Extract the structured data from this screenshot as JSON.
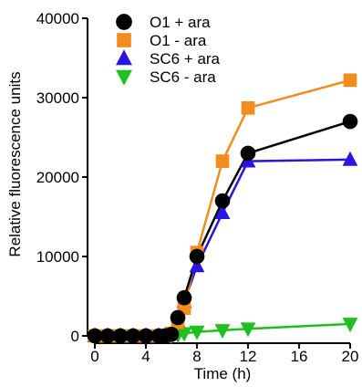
{
  "chart_data": {
    "type": "line",
    "title": "",
    "xlabel": "Time (h)",
    "ylabel": "Relative fluorescence units",
    "xlim": [
      0,
      20
    ],
    "ylim": [
      0,
      40000
    ],
    "x_ticks": [
      0,
      4,
      8,
      12,
      16,
      20
    ],
    "y_ticks": [
      0,
      10000,
      20000,
      30000,
      40000
    ],
    "x_tick_labels": [
      "0",
      "4",
      "8",
      "12",
      "16",
      "20"
    ],
    "y_tick_labels": [
      "0",
      "10000",
      "20000",
      "30000",
      "40000"
    ],
    "legend_position": "top-left",
    "grid": false,
    "series": [
      {
        "name": "O1 + ara",
        "color": "#000000",
        "marker": "circle",
        "x": [
          0,
          1,
          2,
          3,
          4,
          5,
          5.5,
          6,
          6.5,
          7,
          8,
          10,
          12,
          20
        ],
        "y": [
          0,
          0,
          0,
          0,
          0,
          0,
          0,
          200,
          2300,
          4800,
          10000,
          17000,
          23000,
          27000
        ]
      },
      {
        "name": "O1 - ara",
        "color": "#f28c1e",
        "marker": "square",
        "x": [
          0,
          1,
          2,
          3,
          4,
          5,
          5.5,
          6,
          6.5,
          7,
          8,
          10,
          12,
          20
        ],
        "y": [
          0,
          0,
          0,
          0,
          0,
          0,
          0,
          300,
          1700,
          3500,
          10500,
          22000,
          28700,
          32200
        ]
      },
      {
        "name": "SC6 + ara",
        "color": "#2a14e0",
        "marker": "triangle-up",
        "x": [
          0,
          1,
          2,
          3,
          4,
          5,
          5.5,
          6,
          6.5,
          7,
          8,
          10,
          12,
          20
        ],
        "y": [
          0,
          0,
          0,
          0,
          0,
          0,
          0,
          200,
          1800,
          4300,
          8800,
          15500,
          22000,
          22200
        ]
      },
      {
        "name": "SC6 - ara",
        "color": "#1fbf1f",
        "marker": "triangle-down",
        "x": [
          0,
          1,
          2,
          3,
          4,
          5,
          5.5,
          6,
          6.5,
          7,
          8,
          10,
          12,
          20
        ],
        "y": [
          0,
          0,
          0,
          0,
          0,
          0,
          0,
          0,
          100,
          300,
          500,
          700,
          900,
          1500
        ]
      }
    ]
  }
}
